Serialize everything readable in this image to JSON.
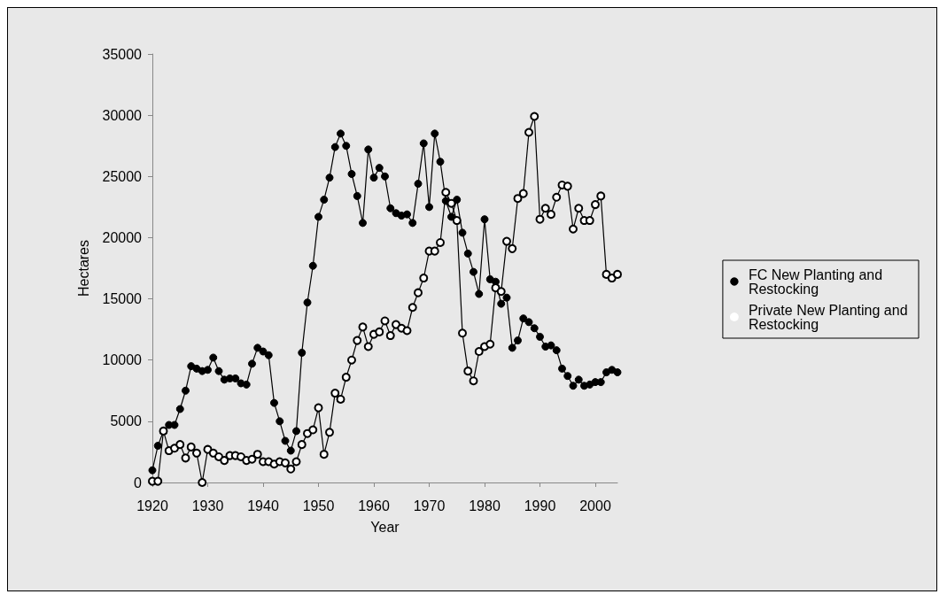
{
  "chart_data": {
    "type": "line",
    "xlabel": "Year",
    "ylabel": "Hectares",
    "x": [
      1920,
      1921,
      1922,
      1923,
      1924,
      1925,
      1926,
      1927,
      1928,
      1929,
      1930,
      1931,
      1932,
      1933,
      1934,
      1935,
      1936,
      1937,
      1938,
      1939,
      1940,
      1941,
      1942,
      1943,
      1944,
      1945,
      1946,
      1947,
      1948,
      1949,
      1950,
      1951,
      1952,
      1953,
      1954,
      1955,
      1956,
      1957,
      1958,
      1959,
      1960,
      1961,
      1962,
      1963,
      1964,
      1965,
      1966,
      1967,
      1968,
      1969,
      1970,
      1971,
      1972,
      1973,
      1974,
      1975,
      1976,
      1977,
      1978,
      1979,
      1980,
      1981,
      1982,
      1983,
      1984,
      1985,
      1986,
      1987,
      1988,
      1989,
      1990,
      1991,
      1992,
      1993,
      1994,
      1995,
      1996,
      1997,
      1998,
      1999,
      2000,
      2001,
      2002,
      2003,
      2004
    ],
    "series": [
      {
        "name": "FC New Planting and Restocking",
        "color": "#000000",
        "values": [
          1000,
          3000,
          4200,
          4700,
          4700,
          6000,
          7500,
          9500,
          9300,
          9100,
          9200,
          10200,
          9100,
          8400,
          8500,
          8500,
          8100,
          8000,
          9700,
          11000,
          10700,
          10400,
          6500,
          5000,
          3400,
          2600,
          4200,
          10600,
          14700,
          17700,
          21700,
          23100,
          24900,
          27400,
          28500,
          27500,
          25200,
          23400,
          21200,
          27200,
          24900,
          25700,
          25000,
          22400,
          22000,
          21800,
          21900,
          21200,
          24400,
          27700,
          22500,
          28500,
          26200,
          23000,
          21700,
          23100,
          20400,
          18700,
          17200,
          15400,
          21500,
          16600,
          16400,
          14600,
          15100,
          11000,
          11600,
          13400,
          13100,
          12600,
          11900,
          11100,
          11200,
          10800,
          9300,
          8700,
          7900,
          8400,
          7900,
          8000,
          8200,
          8200,
          9000,
          9200,
          9000
        ]
      },
      {
        "name": "Private New Planting and Restocking",
        "color": "#000000",
        "values": [
          100,
          100,
          4200,
          2600,
          2800,
          3100,
          2000,
          2900,
          2400,
          0,
          2700,
          2400,
          2100,
          1800,
          2200,
          2200,
          2100,
          1800,
          1900,
          2300,
          1700,
          1700,
          1500,
          1700,
          1600,
          1100,
          1700,
          3100,
          4000,
          4300,
          6100,
          2300,
          4100,
          7300,
          6800,
          8600,
          10000,
          11600,
          12700,
          11100,
          12100,
          12300,
          13200,
          12000,
          12900,
          12600,
          12400,
          14300,
          15500,
          16700,
          18900,
          18900,
          19600,
          23700,
          22800,
          21400,
          12200,
          9100,
          8300,
          10700,
          11100,
          11300,
          15900,
          15600,
          19700,
          19100,
          23200,
          23600,
          28600,
          29900,
          21500,
          22400,
          21900,
          23300,
          24300,
          24200,
          20700,
          22400,
          21400,
          21400,
          22700,
          23400,
          17000,
          16700,
          17000
        ]
      }
    ],
    "xlim": [
      1920,
      2004
    ],
    "xticks": [
      1920,
      1930,
      1940,
      1950,
      1960,
      1970,
      1980,
      1990,
      2000
    ],
    "ylim": [
      0,
      35000
    ],
    "yticks": [
      0,
      5000,
      10000,
      15000,
      20000,
      25000,
      30000,
      35000
    ],
    "grid": false,
    "legend": "right",
    "marker": "circle",
    "line_style": "solid"
  }
}
